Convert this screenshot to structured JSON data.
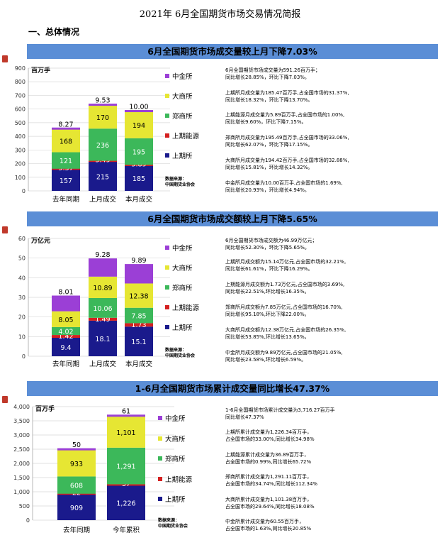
{
  "title": "2021年 6月全国期货市场交易情况简报",
  "section": "一、总体情况",
  "colors": {
    "banner": "#5b8ed6",
    "cffex": "#9b3fd6",
    "dce": "#e6e633",
    "zce": "#3cb85a",
    "ine": "#d42020",
    "shfe": "#1a1a8c"
  },
  "panels": [
    {
      "banner": "6月全国期货市场成交量较上月下降7.03%",
      "unit": "百万手",
      "legend": [
        "中金所",
        "大商所",
        "郑商所",
        "上期能源",
        "上期所"
      ],
      "source": "数据来源：\n中国期货业协会",
      "notes": [
        "6月全国期货市场成交量为591.26百万手；\n同比增长28.85%，环比下降7.03%。",
        "上期所月成交量为185.47百万手,占全国市场的31.37%,\n同比增长18.32%，环比下降13.70%。",
        "上期能源月成交量为5.89百万手,占全国市场的1.00%,\n同比增长9.60%，环比下降7.15%。",
        "郑商所月成交量为195.49百万手,占全国市场的33.06%,\n同比增长62.07%，环比下降17.15%。",
        "大商所月成交量为194.42百万手,占全国市场的32.88%,\n同比增长15.81%，环比增长14.32%。",
        "中金所月成交量为10.00百万手,占全国市场的1.69%,\n同比增长20.93%，环比增长4.94%。"
      ]
    },
    {
      "banner": "6月全国期货市场成交额较上月下降5.65%",
      "unit": "万亿元",
      "legend": [
        "中金所",
        "大商所",
        "郑商所",
        "上期能源",
        "上期所"
      ],
      "source": "数据来源：\n中国期货业协会",
      "notes": [
        "6月全国期货市场成交额为46.99万亿元；\n同比增长52.30%，环比下降5.65%。",
        "上期所月成交额为15.14万亿元,占全国市场的32.21%,\n同比增长61.61%，环比下降16.29%。",
        "上期能源月成交额为1.73万亿元,占全国市场的3.69%,\n同比增长22.51%,环比增长16.35%。",
        "郑商所月成交额为7.85万亿元,占全国市场的16.70%,\n同比增长95.18%,环比下降22.00%。",
        "大商所月成交额为12.38万亿元,占全国市场的26.35%,\n同比增长53.85%,环比增长13.65%。",
        "中金所月成交额为9.89万亿元,占全国市场的21.05%,\n同比增长23.58%,环比增长6.59%。"
      ]
    },
    {
      "banner": "1-6月全国期货市场累计成交量同比增长47.37%",
      "unit": "百万手",
      "legend": [
        "中金所",
        "大商所",
        "郑商所",
        "上期能源",
        "上期所"
      ],
      "source": "数据来源：\n中国期货业协会",
      "notes": [
        "1-6月全国期货市场累计成交量为3,716.27百万手\n同比增长47.37%",
        "上期所累计成交量为1,226.34百万手，\n占全国市场的33.00%,同比增长34.98%",
        "上期能源累计成交量为36.89百万手，\n占全国市场的0.99%,同比增长65.72%",
        "郑商所累计成交量为1,291.11百万手，\n占全国市场的34.74%,同比增长112.34%",
        "大商所累计成交量为1,101.38百万手，\n占全国市场的29.64%,同比增长18.08%",
        "中金所累计成交量为60.55百万手，\n占全国市场的1.63%,同比增长20.85%"
      ]
    }
  ],
  "chart_data": [
    {
      "type": "bar",
      "ylabel": "百万手",
      "ylim": [
        0,
        900
      ],
      "yticks": [
        "0",
        "100",
        "200",
        "300",
        "400",
        "500",
        "600",
        "700",
        "800",
        "900"
      ],
      "categories": [
        "去年同期",
        "上月成交",
        "本月成交"
      ],
      "series": [
        {
          "name": "上期所",
          "values": [
            157,
            215,
            185
          ],
          "labels": [
            "157",
            "215",
            "185"
          ]
        },
        {
          "name": "上期能源",
          "values": [
            5.37,
            5.49,
            5.89
          ],
          "labels": [
            "5.37",
            "5.49",
            "5.89"
          ]
        },
        {
          "name": "郑商所",
          "values": [
            121,
            236,
            195
          ],
          "labels": [
            "121",
            "236",
            "195"
          ]
        },
        {
          "name": "大商所",
          "values": [
            168,
            170,
            194
          ],
          "labels": [
            "168",
            "170",
            "194"
          ]
        },
        {
          "name": "中金所",
          "values": [
            8.27,
            9.53,
            10.0
          ],
          "labels": [
            "8.27",
            "9.53",
            "10.00"
          ]
        }
      ]
    },
    {
      "type": "bar",
      "ylabel": "万亿元",
      "ylim": [
        0,
        60
      ],
      "yticks": [
        "0",
        "10",
        "20",
        "30",
        "40",
        "50",
        "60"
      ],
      "categories": [
        "去年同期",
        "上月成交",
        "本月成交"
      ],
      "series": [
        {
          "name": "上期所",
          "values": [
            9.4,
            18.1,
            15.1
          ],
          "labels": [
            "9.4",
            "18.1",
            "15.1"
          ]
        },
        {
          "name": "上期能源",
          "values": [
            1.42,
            1.49,
            1.73
          ],
          "labels": [
            "1.42",
            "1.49",
            "1.73"
          ]
        },
        {
          "name": "郑商所",
          "values": [
            4.02,
            10.06,
            7.85
          ],
          "labels": [
            "4.02",
            "10.06",
            "7.85"
          ]
        },
        {
          "name": "大商所",
          "values": [
            8.05,
            10.89,
            12.38
          ],
          "labels": [
            "8.05",
            "10.89",
            "12.38"
          ]
        },
        {
          "name": "中金所",
          "values": [
            8.01,
            9.28,
            9.89
          ],
          "labels": [
            "8.01",
            "9.28",
            "9.89"
          ]
        }
      ]
    },
    {
      "type": "bar",
      "ylabel": "百万手",
      "ylim": [
        0,
        4000
      ],
      "yticks": [
        "0",
        "500",
        "1,000",
        "1,500",
        "2,000",
        "2,500",
        "3,000",
        "3,500",
        "4,000"
      ],
      "categories": [
        "去年同期",
        "今年累积"
      ],
      "series": [
        {
          "name": "上期所",
          "values": [
            909,
            1226
          ],
          "labels": [
            "909",
            "1,226"
          ]
        },
        {
          "name": "上期能源",
          "values": [
            22,
            37
          ],
          "labels": [
            "22",
            "37"
          ]
        },
        {
          "name": "郑商所",
          "values": [
            608,
            1291
          ],
          "labels": [
            "608",
            "1,291"
          ]
        },
        {
          "name": "大商所",
          "values": [
            933,
            1101
          ],
          "labels": [
            "933",
            "1,101"
          ]
        },
        {
          "name": "中金所",
          "values": [
            50,
            61
          ],
          "labels": [
            "50",
            "61"
          ]
        }
      ]
    }
  ]
}
